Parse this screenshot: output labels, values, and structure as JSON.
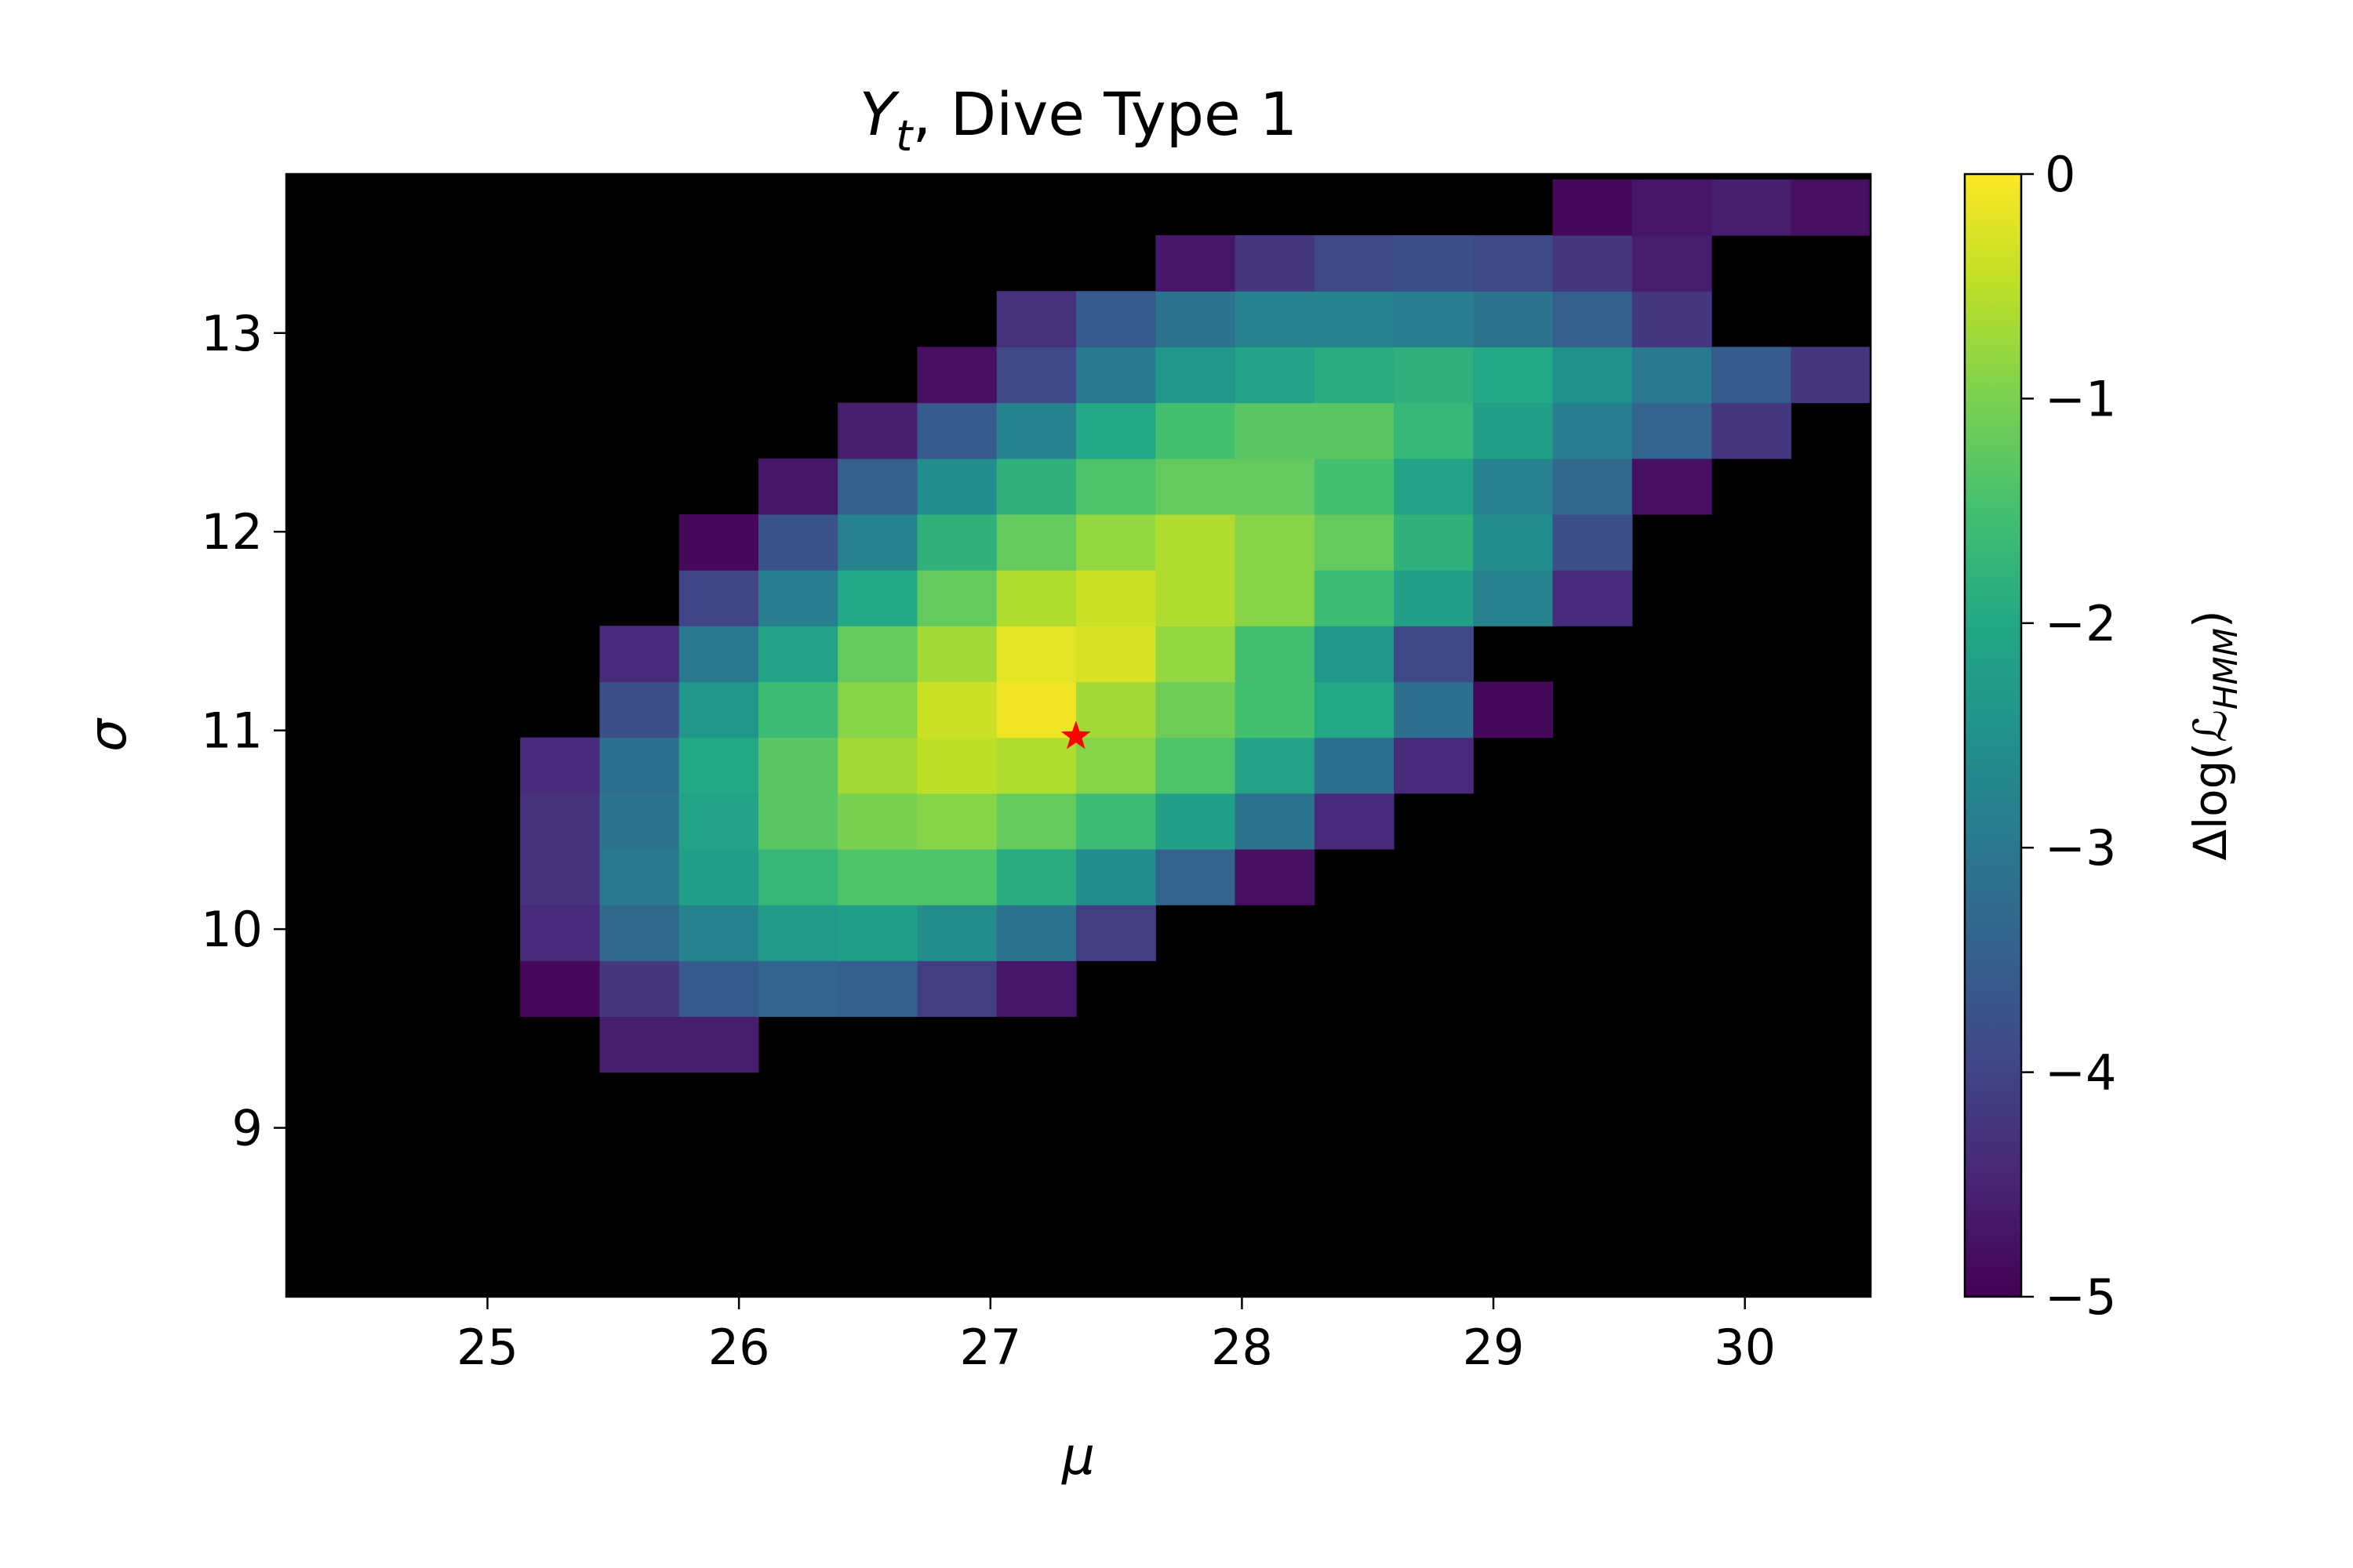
{
  "chart_data": {
    "type": "heatmap",
    "title_main": "Y",
    "title_sub": "t",
    "title_rest": ", Dive Type 1",
    "xlabel": "μ",
    "ylabel": "σ",
    "colorbar_label_pre": "Δlog(",
    "colorbar_label_main": "ℒ",
    "colorbar_label_sub": "HMM",
    "colorbar_label_post": ")",
    "colormap": "viridis",
    "background_color": "#000000",
    "marker_color": "#ff0000",
    "value_range": [
      -5,
      0
    ],
    "xlim": [
      24.2,
      30.5
    ],
    "ylim": [
      8.15,
      13.8
    ],
    "x_ticks": [
      "25",
      "26",
      "27",
      "28",
      "29",
      "30"
    ],
    "y_ticks": [
      "9",
      "10",
      "11",
      "12",
      "13"
    ],
    "colorbar_ticks": [
      "0",
      "−1",
      "−2",
      "−3",
      "−4",
      "−5"
    ],
    "grid": false,
    "cell_width": 0.3158,
    "cell_height": 0.2808,
    "x_edges_start": 25.13,
    "y_edges_start": 9.28,
    "best_fit": {
      "mu": 27.34,
      "sigma": 10.97
    },
    "rows_from_bottom": [
      {
        "start": 1,
        "values": [
          -4.6,
          -4.6
        ]
      },
      {
        "start": 0,
        "values": [
          -4.9,
          -4.2,
          -3.6,
          -3.4,
          -3.5,
          -4.1,
          -4.7
        ]
      },
      {
        "start": 0,
        "values": [
          -4.4,
          -3.3,
          -2.8,
          -2.3,
          -2.2,
          -2.6,
          -3.1,
          -4.1
        ]
      },
      {
        "start": 0,
        "values": [
          -4.3,
          -3.0,
          -2.2,
          -1.7,
          -1.4,
          -1.4,
          -1.9,
          -2.6,
          -3.4,
          -4.8
        ]
      },
      {
        "start": 0,
        "values": [
          -4.3,
          -3.1,
          -2.1,
          -1.3,
          -1.0,
          -0.9,
          -1.2,
          -1.6,
          -2.2,
          -3.1,
          -4.4
        ]
      },
      {
        "start": 0,
        "values": [
          -4.4,
          -3.2,
          -2.0,
          -1.3,
          -0.7,
          -0.5,
          -0.6,
          -0.9,
          -1.4,
          -2.1,
          -3.2,
          -4.4
        ]
      },
      {
        "start": 1,
        "values": [
          -3.8,
          -2.4,
          -1.6,
          -0.9,
          -0.4,
          -0.1,
          -0.7,
          -1.1,
          -1.5,
          -2.0,
          -3.2,
          -4.9
        ]
      },
      {
        "start": 1,
        "values": [
          -4.4,
          -3.0,
          -2.1,
          -1.2,
          -0.7,
          -0.2,
          -0.3,
          -0.8,
          -1.5,
          -2.4,
          -3.9
        ]
      },
      {
        "start": 2,
        "values": [
          -4.0,
          -2.9,
          -2.0,
          -1.2,
          -0.6,
          -0.4,
          -0.6,
          -0.9,
          -1.6,
          -2.2,
          -2.8,
          -4.4
        ]
      },
      {
        "start": 2,
        "values": [
          -4.9,
          -3.7,
          -2.8,
          -1.8,
          -1.2,
          -0.8,
          -0.6,
          -0.9,
          -1.2,
          -1.8,
          -2.6,
          -3.8
        ]
      },
      {
        "start": 3,
        "values": [
          -4.7,
          -3.5,
          -2.6,
          -1.8,
          -1.4,
          -1.2,
          -1.2,
          -1.5,
          -2.1,
          -2.8,
          -3.3,
          -4.8
        ]
      },
      {
        "start": 4,
        "values": [
          -4.6,
          -3.6,
          -2.8,
          -2.0,
          -1.5,
          -1.3,
          -1.3,
          -1.7,
          -2.2,
          -2.9,
          -3.4,
          -4.2
        ]
      },
      {
        "start": 5,
        "values": [
          -4.8,
          -3.9,
          -3.0,
          -2.4,
          -2.1,
          -1.9,
          -1.8,
          -2.0,
          -2.5,
          -3.0,
          -3.6,
          -4.2
        ]
      },
      {
        "start": 6,
        "values": [
          -4.3,
          -3.6,
          -3.1,
          -2.8,
          -2.8,
          -2.9,
          -3.1,
          -3.5,
          -4.2
        ]
      },
      {
        "start": 8,
        "values": [
          -4.7,
          -4.2,
          -3.9,
          -3.8,
          -3.9,
          -4.2,
          -4.6
        ]
      },
      {
        "start": 13,
        "values": [
          -4.9,
          -4.7,
          -4.6,
          -4.8
        ]
      }
    ]
  }
}
